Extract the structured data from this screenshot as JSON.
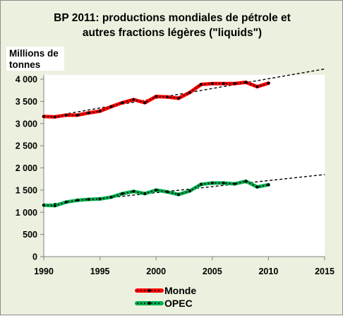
{
  "chart_data": {
    "type": "line",
    "title": [
      "BP 2011: productions mondiales de pétrole et",
      "autres  fractions légères  (\"liquids\")"
    ],
    "ylabel": [
      "Millions de",
      "tonnes"
    ],
    "xlabel": "",
    "xlim": [
      1990,
      2015
    ],
    "ylim": [
      0,
      4000
    ],
    "x_ticks": [
      1990,
      1995,
      2000,
      2005,
      2010,
      2015
    ],
    "y_ticks": [
      0,
      500,
      1000,
      1500,
      2000,
      2500,
      3000,
      3500,
      4000
    ],
    "y_tick_labels": [
      "0",
      "500",
      "1 000",
      "1 500",
      "2 000",
      "2 500",
      "3 000",
      "3 500",
      "4 000"
    ],
    "grid": false,
    "legend_position": "bottom-center",
    "x": [
      1990,
      1991,
      1992,
      1993,
      1994,
      1995,
      1996,
      1997,
      1998,
      1999,
      2000,
      2001,
      2002,
      2003,
      2004,
      2005,
      2006,
      2007,
      2008,
      2009,
      2010
    ],
    "series": [
      {
        "name": "Monde",
        "color": "#ff0000",
        "values": [
          3160,
          3150,
          3190,
          3190,
          3240,
          3280,
          3380,
          3470,
          3540,
          3470,
          3610,
          3600,
          3570,
          3700,
          3880,
          3900,
          3900,
          3900,
          3930,
          3830,
          3910
        ],
        "trend": {
          "x": [
            1990,
            2015
          ],
          "y": [
            3130,
            4230
          ]
        }
      },
      {
        "name": "OPEC",
        "color": "#00b050",
        "values": [
          1160,
          1150,
          1230,
          1270,
          1290,
          1300,
          1340,
          1420,
          1470,
          1420,
          1500,
          1460,
          1400,
          1480,
          1630,
          1660,
          1660,
          1640,
          1700,
          1570,
          1620
        ],
        "trend": {
          "x": [
            1990,
            2015
          ],
          "y": [
            1170,
            1850
          ]
        }
      }
    ]
  }
}
